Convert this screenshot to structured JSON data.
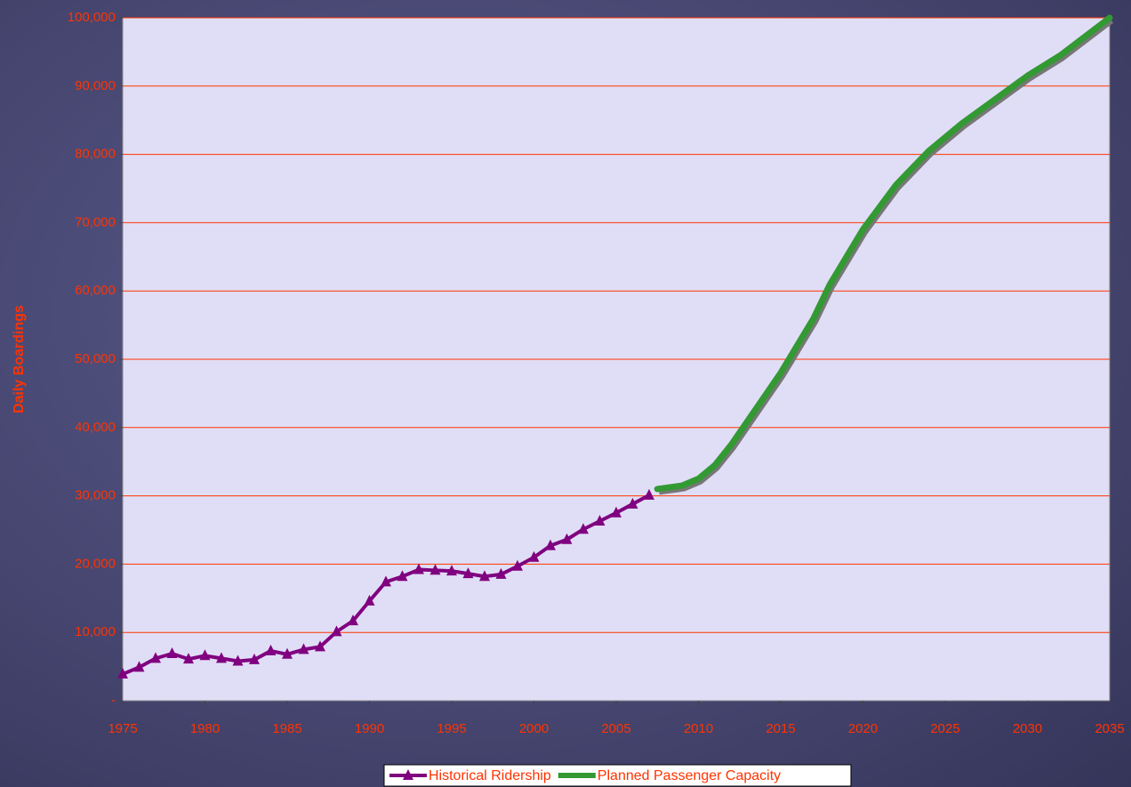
{
  "chart_data": {
    "type": "line",
    "y_label": "Daily Boardings",
    "xlim": [
      1975,
      2035
    ],
    "xticks": [
      1975,
      1980,
      1985,
      1990,
      1995,
      2000,
      2005,
      2010,
      2015,
      2020,
      2025,
      2030,
      2035
    ],
    "ylim": [
      0,
      100000
    ],
    "yticks": [
      {
        "value": 0,
        "label": "-"
      },
      {
        "value": 10000,
        "label": "10,000"
      },
      {
        "value": 20000,
        "label": "20,000"
      },
      {
        "value": 30000,
        "label": "30,000"
      },
      {
        "value": 40000,
        "label": "40,000"
      },
      {
        "value": 50000,
        "label": "50,000"
      },
      {
        "value": 60000,
        "label": "60,000"
      },
      {
        "value": 70000,
        "label": "70,000"
      },
      {
        "value": 80000,
        "label": "80,000"
      },
      {
        "value": 90000,
        "label": "90,000"
      },
      {
        "value": 100000,
        "label": "100,000"
      }
    ],
    "grid": true,
    "legend": "bottom",
    "series": [
      {
        "name": "Historical Ridership",
        "color": "#800080",
        "marker": "triangle",
        "x": [
          1975,
          1976,
          1977,
          1978,
          1979,
          1980,
          1981,
          1982,
          1983,
          1984,
          1985,
          1986,
          1987,
          1988,
          1989,
          1990,
          1991,
          1992,
          1993,
          1994,
          1995,
          1996,
          1997,
          1998,
          1999,
          2000,
          2001,
          2002,
          2003,
          2004,
          2005,
          2006,
          2007
        ],
        "values": [
          3900,
          4900,
          6200,
          6900,
          6100,
          6600,
          6200,
          5800,
          6000,
          7300,
          6800,
          7500,
          7900,
          10100,
          11700,
          14600,
          17400,
          18200,
          19200,
          19100,
          19000,
          18600,
          18200,
          18500,
          19700,
          21000,
          22700,
          23600,
          25100,
          26300,
          27500,
          28800,
          30100
        ]
      },
      {
        "name": "Planned Passenger Capacity",
        "color": "#339933",
        "x": [
          2007.5,
          2009,
          2010,
          2011,
          2012,
          2013,
          2015,
          2017,
          2018,
          2020,
          2022,
          2024,
          2026,
          2028,
          2030,
          2032,
          2035
        ],
        "values": [
          31000,
          31500,
          32500,
          34500,
          37500,
          41000,
          48000,
          56000,
          61000,
          69000,
          75500,
          80500,
          84500,
          88000,
          91500,
          94500,
          100000
        ]
      }
    ]
  }
}
